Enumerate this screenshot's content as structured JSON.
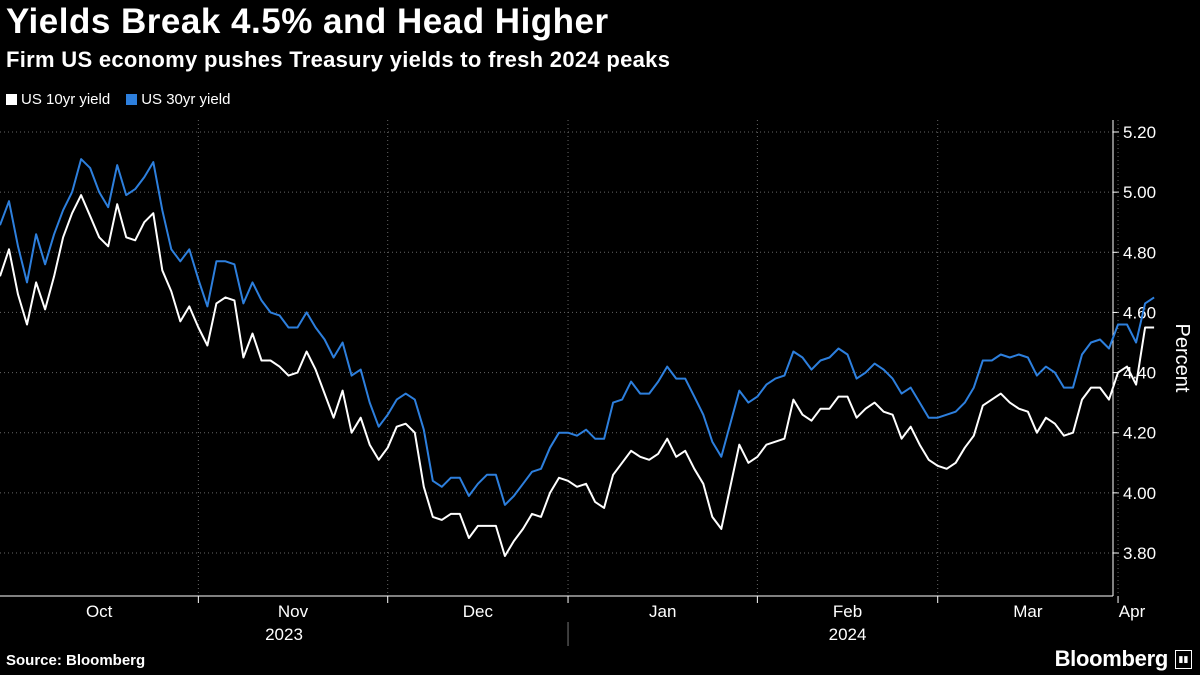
{
  "header": {
    "title": "Yields Break 4.5% and Head Higher",
    "subtitle": "Firm US economy pushes Treasury yields to fresh 2024 peaks"
  },
  "footer": {
    "source": "Source: Bloomberg",
    "brand": "Bloomberg",
    "brand_mark_icon": "bloomberg-terminal-icon"
  },
  "colors": {
    "background": "#000000",
    "series_10yr": "#ffffff",
    "series_30yr": "#2d7fdd",
    "grid": "#666666"
  },
  "chart_data": {
    "type": "line",
    "title": "Yields Break 4.5% and Head Higher",
    "subtitle": "Firm US economy pushes Treasury yields to fresh 2024 peaks",
    "xlabel": "",
    "ylabel": "Percent",
    "ylim": [
      3.7,
      5.25
    ],
    "yticks": [
      3.8,
      4.0,
      4.2,
      4.4,
      4.6,
      4.8,
      5.0,
      5.2
    ],
    "ytick_labels": [
      "3.80",
      "4.00",
      "4.20",
      "4.40",
      "4.60",
      "4.80",
      "5.00",
      "5.20"
    ],
    "x_index_range": [
      0,
      125
    ],
    "months": [
      {
        "label": "Oct",
        "start": 0,
        "end": 22
      },
      {
        "label": "Nov",
        "start": 22,
        "end": 43
      },
      {
        "label": "Dec",
        "start": 43,
        "end": 63
      },
      {
        "label": "Jan",
        "start": 63,
        "end": 84
      },
      {
        "label": "Feb",
        "start": 84,
        "end": 104
      },
      {
        "label": "Mar",
        "start": 104,
        "end": 124
      },
      {
        "label": "Apr",
        "start": 124,
        "end": 125
      }
    ],
    "years": [
      {
        "label": "2023",
        "start": 0,
        "end": 63
      },
      {
        "label": "2024",
        "start": 63,
        "end": 125
      }
    ],
    "grid": true,
    "legend_position": "top-left",
    "series": [
      {
        "name": "US 10yr yield",
        "color": "#ffffff",
        "values": [
          4.72,
          4.81,
          4.66,
          4.56,
          4.7,
          4.61,
          4.72,
          4.85,
          4.93,
          4.99,
          4.92,
          4.85,
          4.82,
          4.96,
          4.85,
          4.84,
          4.9,
          4.93,
          4.74,
          4.67,
          4.57,
          4.62,
          4.55,
          4.49,
          4.63,
          4.65,
          4.64,
          4.45,
          4.53,
          4.44,
          4.44,
          4.42,
          4.39,
          4.4,
          4.47,
          4.41,
          4.33,
          4.25,
          4.34,
          4.2,
          4.25,
          4.16,
          4.11,
          4.15,
          4.22,
          4.23,
          4.2,
          4.02,
          3.92,
          3.91,
          3.93,
          3.93,
          3.85,
          3.89,
          3.89,
          3.89,
          3.79,
          3.84,
          3.88,
          3.93,
          3.92,
          4.0,
          4.05,
          4.04,
          4.02,
          4.03,
          3.97,
          3.95,
          4.06,
          4.1,
          4.14,
          4.12,
          4.11,
          4.13,
          4.18,
          4.12,
          4.14,
          4.08,
          4.03,
          3.92,
          3.88,
          4.02,
          4.16,
          4.1,
          4.12,
          4.16,
          4.17,
          4.18,
          4.31,
          4.26,
          4.24,
          4.28,
          4.28,
          4.32,
          4.32,
          4.25,
          4.28,
          4.3,
          4.27,
          4.26,
          4.18,
          4.22,
          4.16,
          4.11,
          4.09,
          4.08,
          4.1,
          4.15,
          4.19,
          4.29,
          4.31,
          4.33,
          4.3,
          4.28,
          4.27,
          4.2,
          4.25,
          4.23,
          4.19,
          4.2,
          4.31,
          4.35,
          4.35,
          4.31,
          4.4,
          4.42,
          4.36,
          4.55,
          4.55
        ]
      },
      {
        "name": "US 30yr yield",
        "color": "#2d7fdd",
        "values": [
          4.89,
          4.97,
          4.82,
          4.7,
          4.86,
          4.76,
          4.86,
          4.94,
          5.0,
          5.11,
          5.08,
          5.0,
          4.95,
          5.09,
          4.99,
          5.01,
          5.05,
          5.1,
          4.94,
          4.81,
          4.77,
          4.81,
          4.71,
          4.62,
          4.77,
          4.77,
          4.76,
          4.63,
          4.7,
          4.64,
          4.6,
          4.59,
          4.55,
          4.55,
          4.6,
          4.55,
          4.51,
          4.45,
          4.5,
          4.39,
          4.41,
          4.3,
          4.22,
          4.26,
          4.31,
          4.33,
          4.31,
          4.21,
          4.04,
          4.02,
          4.05,
          4.05,
          3.99,
          4.03,
          4.06,
          4.06,
          3.96,
          3.99,
          4.03,
          4.07,
          4.08,
          4.15,
          4.2,
          4.2,
          4.19,
          4.21,
          4.18,
          4.18,
          4.3,
          4.31,
          4.37,
          4.33,
          4.33,
          4.37,
          4.42,
          4.38,
          4.38,
          4.32,
          4.26,
          4.17,
          4.12,
          4.23,
          4.34,
          4.3,
          4.32,
          4.36,
          4.38,
          4.39,
          4.47,
          4.45,
          4.41,
          4.44,
          4.45,
          4.48,
          4.46,
          4.38,
          4.4,
          4.43,
          4.41,
          4.38,
          4.33,
          4.35,
          4.3,
          4.25,
          4.25,
          4.26,
          4.27,
          4.3,
          4.35,
          4.44,
          4.44,
          4.46,
          4.45,
          4.46,
          4.45,
          4.39,
          4.42,
          4.4,
          4.35,
          4.35,
          4.46,
          4.5,
          4.51,
          4.48,
          4.56,
          4.56,
          4.5,
          4.63,
          4.65
        ]
      }
    ]
  }
}
